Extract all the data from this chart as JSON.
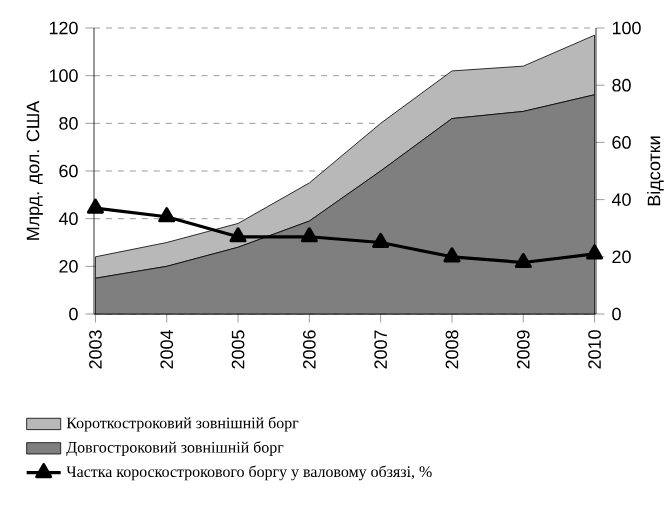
{
  "chart_data": {
    "type": "area",
    "stacked": true,
    "categories": [
      "2003",
      "2004",
      "2005",
      "2006",
      "2007",
      "2008",
      "2009",
      "2010"
    ],
    "series": [
      {
        "name": "Довгостроковий зовнішній борг",
        "color": "#7f7f7f",
        "values": [
          15,
          20,
          28,
          39,
          60,
          82,
          85,
          92
        ]
      },
      {
        "name": "Короткостроковий зовнішній борг",
        "color": "#b8b8b8",
        "values": [
          9,
          10,
          10,
          16,
          20,
          20,
          19,
          25
        ]
      },
      {
        "name": "Частка короскострокового боргу у валовому обзязі, %",
        "type": "line",
        "axis": "y2",
        "color": "#000000",
        "marker": "triangle",
        "values": [
          37,
          34,
          27,
          27,
          25,
          20,
          18,
          21
        ]
      }
    ],
    "ylabel": "Млрд. дол. США",
    "y2label": "Відсотки",
    "ylim": [
      0,
      120
    ],
    "yticks": [
      0,
      20,
      40,
      60,
      80,
      100,
      120
    ],
    "y2lim": [
      0,
      100
    ],
    "y2ticks": [
      0,
      20,
      40,
      60,
      80,
      100
    ],
    "grid": "y",
    "legend": "bottom"
  }
}
